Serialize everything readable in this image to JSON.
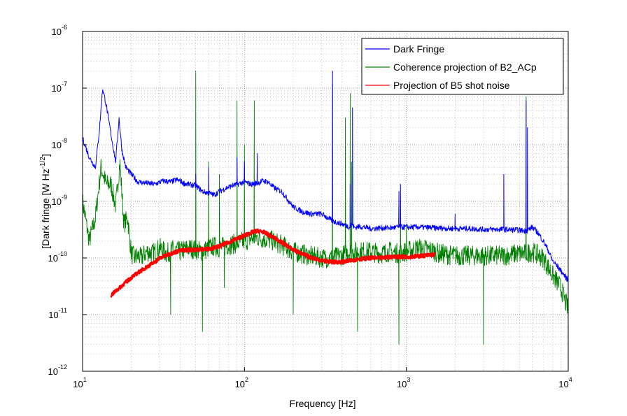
{
  "chart_data": {
    "type": "line",
    "title": "",
    "xlabel": "Frequency [Hz]",
    "ylabel_base": "[Dark fringe [W Hz",
    "ylabel_exp": "-1/2",
    "ylabel_tail": "]",
    "xscale": "log",
    "yscale": "log",
    "xlim": [
      10,
      10000
    ],
    "ylim": [
      1e-12,
      1e-06
    ],
    "grid": true,
    "legend_position": "top-right",
    "x_ticks": [
      {
        "base": "10",
        "exp": "1",
        "value": 10
      },
      {
        "base": "10",
        "exp": "2",
        "value": 100
      },
      {
        "base": "10",
        "exp": "3",
        "value": 1000
      },
      {
        "base": "10",
        "exp": "4",
        "value": 10000
      }
    ],
    "y_ticks": [
      {
        "base": "10",
        "exp": "-12",
        "value": 1e-12
      },
      {
        "base": "10",
        "exp": "-11",
        "value": 1e-11
      },
      {
        "base": "10",
        "exp": "-10",
        "value": 1e-10
      },
      {
        "base": "10",
        "exp": "-9",
        "value": 1e-09
      },
      {
        "base": "10",
        "exp": "-8",
        "value": 1e-08
      },
      {
        "base": "10",
        "exp": "-7",
        "value": 1e-07
      },
      {
        "base": "10",
        "exp": "-6",
        "value": 1e-06
      }
    ],
    "series": [
      {
        "name": "Dark Fringe",
        "color": "#0000ff",
        "x": [
          10,
          11,
          12,
          12.7,
          13.3,
          14,
          15,
          16,
          16.8,
          17.5,
          18.5,
          20,
          22,
          25,
          28,
          30,
          32,
          35,
          38,
          40,
          42,
          45,
          50,
          55,
          60,
          65,
          70,
          80,
          90,
          100,
          110,
          120,
          130,
          140,
          150,
          160,
          170,
          180,
          200,
          230,
          260,
          300,
          350,
          400,
          450,
          460,
          480,
          500,
          550,
          600,
          700,
          800,
          900,
          1000,
          1200,
          1500,
          2000,
          2500,
          3000,
          4000,
          5000,
          5500,
          6000,
          6500,
          7000,
          7500,
          8000,
          9000,
          10000
        ],
        "y": [
          1.3e-08,
          6e-09,
          4e-09,
          1.8e-08,
          1e-07,
          5e-08,
          1.5e-08,
          5e-09,
          3e-08,
          8e-09,
          4e-09,
          3e-09,
          2.2e-09,
          2.1e-09,
          2e-09,
          2.2e-09,
          2.3e-09,
          2.2e-09,
          2.4e-09,
          2.3e-09,
          2.1e-09,
          2e-09,
          1.9e-09,
          1.5e-09,
          1.4e-09,
          1.3e-09,
          1.5e-09,
          1.8e-09,
          2e-09,
          2.2e-09,
          2e-09,
          2.1e-09,
          2.3e-09,
          2.2e-09,
          1.8e-09,
          1.6e-09,
          1.5e-09,
          1.2e-09,
          8e-10,
          6.5e-10,
          6e-10,
          6e-10,
          4.5e-10,
          4e-10,
          3.5e-10,
          4e-10,
          3.4e-10,
          3.6e-10,
          3.5e-10,
          3.3e-10,
          3.4e-10,
          3.4e-10,
          3.5e-10,
          3.5e-10,
          3.5e-10,
          3.4e-10,
          3.3e-10,
          3.3e-10,
          3.2e-10,
          3.2e-10,
          3.1e-10,
          3e-10,
          3.5e-10,
          2.8e-10,
          2e-10,
          1.4e-10,
          9e-11,
          6e-11,
          4e-11
        ],
        "peaks": [
          {
            "x": 50,
            "y": 3e-09
          },
          {
            "x": 60,
            "y": 4e-09
          },
          {
            "x": 90,
            "y": 6e-09
          },
          {
            "x": 100,
            "y": 5e-09
          },
          {
            "x": 120,
            "y": 7e-09
          },
          {
            "x": 350,
            "y": 2e-07
          },
          {
            "x": 450,
            "y": 2e-09
          },
          {
            "x": 465,
            "y": 4.5e-08
          },
          {
            "x": 900,
            "y": 1.5e-09
          },
          {
            "x": 920,
            "y": 2e-09
          },
          {
            "x": 2000,
            "y": 6e-10
          },
          {
            "x": 4000,
            "y": 3e-09
          },
          {
            "x": 5500,
            "y": 6e-08
          },
          {
            "x": 5600,
            "y": 2e-08
          }
        ]
      },
      {
        "name": "Coherence projection of B2_ACp",
        "color": "#008000",
        "x": [
          10,
          11,
          12,
          13,
          14,
          15,
          16,
          17,
          18,
          19,
          20,
          21,
          22,
          23,
          25,
          27,
          30,
          33,
          36,
          40,
          45,
          50,
          55,
          60,
          65,
          70,
          80,
          90,
          100,
          110,
          120,
          130,
          150,
          170,
          200,
          250,
          300,
          350,
          400,
          430,
          450,
          500,
          600,
          700,
          800,
          900,
          1000,
          1200,
          1400,
          1600,
          2000,
          2500,
          3000,
          4000,
          5000,
          5500,
          6000,
          7000,
          8000,
          9000,
          10000
        ],
        "y": [
          1e-09,
          2e-10,
          5e-10,
          4e-09,
          2e-09,
          2e-09,
          8e-10,
          5e-09,
          4e-10,
          5e-10,
          1.2e-10,
          1e-10,
          1.1e-10,
          1e-10,
          1.3e-10,
          1.2e-10,
          1.5e-10,
          1.2e-10,
          1.4e-10,
          1.3e-10,
          1.5e-10,
          1.4e-10,
          1.3e-10,
          1.5e-10,
          1.6e-10,
          1.5e-10,
          1.7e-10,
          1.8e-10,
          2e-10,
          2.2e-10,
          2.3e-10,
          2.2e-10,
          2e-10,
          1.7e-10,
          1.3e-10,
          1.1e-10,
          1e-10,
          1e-10,
          1.1e-10,
          1.2e-10,
          1.3e-10,
          1.3e-10,
          1.3e-10,
          1.2e-10,
          1.3e-10,
          1.2e-10,
          1.3e-10,
          1.5e-10,
          1.4e-10,
          1.2e-10,
          1.1e-10,
          1.1e-10,
          1.1e-10,
          1.1e-10,
          1.2e-10,
          1.2e-10,
          1.3e-10,
          1e-10,
          5e-11,
          3e-11,
          1.2e-11
        ],
        "peaks": [
          {
            "x": 50,
            "y": 2e-07
          },
          {
            "x": 60,
            "y": 5e-09
          },
          {
            "x": 70,
            "y": 3e-09
          },
          {
            "x": 90,
            "y": 6e-08
          },
          {
            "x": 100,
            "y": 1e-08
          },
          {
            "x": 115,
            "y": 6e-08
          },
          {
            "x": 350,
            "y": 1.2e-07
          },
          {
            "x": 420,
            "y": 3e-08
          },
          {
            "x": 450,
            "y": 8e-08
          },
          {
            "x": 460,
            "y": 5e-09
          },
          {
            "x": 920,
            "y": 8e-10
          },
          {
            "x": 1000,
            "y": 4e-10
          },
          {
            "x": 5500,
            "y": 7e-08
          }
        ],
        "dips": [
          {
            "x": 35,
            "y": 1e-11
          },
          {
            "x": 55,
            "y": 5e-12
          },
          {
            "x": 75,
            "y": 3e-11
          },
          {
            "x": 200,
            "y": 1e-11
          },
          {
            "x": 500,
            "y": 5e-12
          },
          {
            "x": 900,
            "y": 3e-12
          },
          {
            "x": 3000,
            "y": 3e-12
          }
        ]
      },
      {
        "name": "Projection of B5 shot noise",
        "color": "#ff0000",
        "x": [
          15,
          16,
          17,
          18,
          20,
          22,
          25,
          28,
          30,
          35,
          40,
          45,
          50,
          60,
          70,
          80,
          90,
          100,
          110,
          120,
          130,
          140,
          160,
          180,
          200,
          250,
          300,
          350,
          400,
          450,
          500,
          600,
          700,
          800,
          900,
          1000,
          1200,
          1500
        ],
        "y": [
          2.2e-11,
          2.6e-11,
          3e-11,
          3.5e-11,
          4.5e-11,
          5.5e-11,
          7e-11,
          8.5e-11,
          1e-10,
          1.2e-10,
          1.35e-10,
          1.4e-10,
          1.4e-10,
          1.45e-10,
          1.6e-10,
          1.9e-10,
          2.2e-10,
          2.5e-10,
          2.8e-10,
          3e-10,
          2.9e-10,
          2.6e-10,
          2.1e-10,
          1.7e-10,
          1.4e-10,
          1.05e-10,
          9e-11,
          8.5e-11,
          8.5e-11,
          9e-11,
          9.5e-11,
          1e-10,
          1e-10,
          1.05e-10,
          1.05e-10,
          1.05e-10,
          1.08e-10,
          1.15e-10
        ]
      }
    ]
  }
}
